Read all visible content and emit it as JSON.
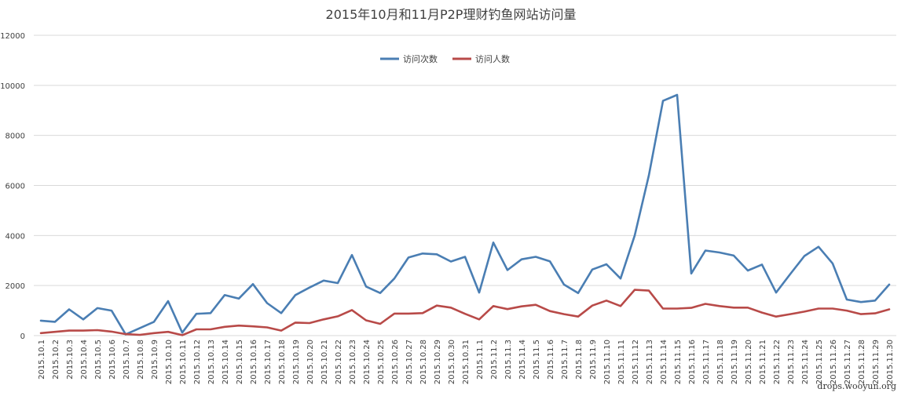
{
  "chart_data": {
    "type": "line",
    "title": "2015年10月和11月P2P理财钓鱼网站访问量",
    "ylim": [
      0,
      12000
    ],
    "yticks": [
      0,
      2000,
      4000,
      6000,
      8000,
      10000,
      12000
    ],
    "grid": true,
    "legend_position": "top",
    "categories": [
      "2015.10.1",
      "2015.10.2",
      "2015.10.3",
      "2015.10.4",
      "2015.10.5",
      "2015.10.6",
      "2015.10.7",
      "2015.10.8",
      "2015.10.9",
      "2015.10.10",
      "2015.10.11",
      "2015.10.12",
      "2015.10.13",
      "2015.10.14",
      "2015.10.15",
      "2015.10.16",
      "2015.10.17",
      "2015.10.18",
      "2015.10.19",
      "2015.10.20",
      "2015.10.21",
      "2015.10.22",
      "2015.10.23",
      "2015.10.24",
      "2015.10.25",
      "2015.10.26",
      "2015.10.27",
      "2015.10.28",
      "2015.10.29",
      "2015.10.30",
      "2015.10.31",
      "2015.11.1",
      "2015.11.2",
      "2015.11.3",
      "2015.11.4",
      "2015.11.5",
      "2015.11.6",
      "2015.11.7",
      "2015.11.8",
      "2015.11.9",
      "2015.11.10",
      "2015.11.11",
      "2015.11.12",
      "2015.11.13",
      "2015.11.14",
      "2015.11.15",
      "2015.11.16",
      "2015.11.17",
      "2015.11.18",
      "2015.11.19",
      "2015.11.20",
      "2015.11.21",
      "2015.11.22",
      "2015.11.23",
      "2015.11.24",
      "2015.11.25",
      "2015.11.26",
      "2015.11.27",
      "2015.11.28",
      "2015.11.29",
      "2015.11.30"
    ],
    "series": [
      {
        "name": "访问次数",
        "color": "#4a7eb3",
        "values": [
          600,
          550,
          1050,
          650,
          1100,
          1000,
          50,
          300,
          550,
          1380,
          120,
          870,
          900,
          1620,
          1480,
          2060,
          1300,
          900,
          1620,
          1920,
          2200,
          2100,
          3220,
          1960,
          1700,
          2280,
          3120,
          3280,
          3250,
          2960,
          3150,
          1720,
          3720,
          2620,
          3050,
          3150,
          2970,
          2040,
          1700,
          2640,
          2850,
          2280,
          4000,
          6400,
          9380,
          9620,
          2480,
          3400,
          3320,
          3200,
          2600,
          2840,
          1720,
          2460,
          3180,
          3550,
          2880,
          1440,
          1340,
          1400,
          2040
        ]
      },
      {
        "name": "访问人数",
        "color": "#b84a48",
        "values": [
          100,
          150,
          200,
          200,
          220,
          160,
          60,
          30,
          100,
          150,
          20,
          250,
          250,
          350,
          400,
          370,
          330,
          200,
          520,
          500,
          650,
          770,
          1020,
          610,
          470,
          880,
          880,
          900,
          1200,
          1120,
          870,
          650,
          1180,
          1060,
          1170,
          1230,
          980,
          860,
          760,
          1200,
          1400,
          1180,
          1830,
          1800,
          1080,
          1080,
          1110,
          1270,
          1180,
          1120,
          1120,
          920,
          760,
          860,
          960,
          1080,
          1080,
          1000,
          860,
          890,
          1050
        ]
      }
    ]
  },
  "watermark": "drops.wooyun.org"
}
